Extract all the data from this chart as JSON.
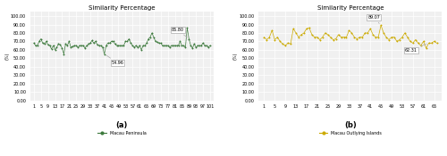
{
  "title_a": "Similarity Percentage",
  "title_b": "Similarity Percentage",
  "ylabel": "(%)",
  "xlabel_a": "(a)",
  "xlabel_b": "(b)",
  "legend_a": "Macau Peninsula",
  "legend_b": "Macau Outlying Islands",
  "color_a": "#3d7a3d",
  "color_b": "#ccaa00",
  "bg_color": "#f0f0f0",
  "grid_color": "#ffffff",
  "ylim": [
    0,
    105
  ],
  "yticks": [
    0,
    10,
    20,
    30,
    40,
    50,
    60,
    70,
    80,
    90,
    100
  ],
  "ytick_labels": [
    "0.00",
    "10.00",
    "20.00",
    "30.00",
    "40.00",
    "50.00",
    "60.00",
    "70.00",
    "80.00",
    "90.00",
    "100.00"
  ],
  "xticks_a": [
    1,
    5,
    9,
    13,
    17,
    21,
    25,
    29,
    33,
    37,
    41,
    45,
    49,
    53,
    57,
    61,
    65,
    69,
    73,
    77,
    81,
    85,
    89,
    93,
    97,
    101
  ],
  "xtick_labels_a": [
    "1",
    "5",
    "9",
    "13",
    "17",
    "21",
    "25",
    "29",
    "33",
    "37",
    "41",
    "45",
    "49",
    "53",
    "57",
    "61",
    "65",
    "69",
    "73",
    "77",
    "81",
    "85",
    "89",
    "93",
    "97",
    "101"
  ],
  "xticks_b": [
    1,
    5,
    9,
    13,
    17,
    21,
    25,
    29,
    33,
    37,
    41,
    45,
    49,
    53,
    57,
    61,
    65
  ],
  "xtick_labels_b": [
    "1",
    "5",
    "9",
    "13",
    "17",
    "21",
    "25",
    "29",
    "33",
    "37",
    "41",
    "45",
    "49",
    "53",
    "57",
    "61",
    "65"
  ],
  "ann_a_max_val": 85.8,
  "ann_a_max_idx": 89,
  "ann_a_min_val": 54.96,
  "ann_a_min_idx": 41,
  "ann_b_max_val": 89.07,
  "ann_b_max_idx": 45,
  "ann_b_min_val": 62.31,
  "ann_b_min_idx": 63,
  "values_a": [
    68,
    65,
    65,
    70,
    73,
    68,
    67,
    70,
    66,
    65,
    61,
    65,
    60,
    63,
    67,
    66,
    62,
    55,
    67,
    65,
    70,
    63,
    64,
    65,
    65,
    63,
    65,
    65,
    65,
    62,
    65,
    67,
    68,
    71,
    68,
    70,
    66,
    65,
    65,
    63,
    55,
    65,
    68,
    68,
    70,
    70,
    67,
    65,
    65,
    65,
    65,
    65,
    70,
    70,
    73,
    68,
    65,
    63,
    65,
    63,
    65,
    60,
    65,
    65,
    68,
    73,
    75,
    80,
    75,
    70,
    69,
    68,
    68,
    65,
    65,
    65,
    65,
    63,
    65,
    65,
    65,
    65,
    65,
    70,
    65,
    65,
    63,
    86,
    73,
    65,
    62,
    67,
    63,
    65,
    65,
    65,
    68,
    65,
    65,
    63,
    65
  ],
  "values_b": [
    75,
    72,
    75,
    83,
    72,
    75,
    70,
    67,
    65,
    68,
    67,
    85,
    80,
    75,
    78,
    80,
    85,
    86,
    78,
    75,
    75,
    72,
    75,
    80,
    78,
    75,
    72,
    73,
    78,
    75,
    75,
    75,
    83,
    80,
    75,
    73,
    75,
    75,
    80,
    80,
    85,
    78,
    75,
    75,
    89,
    80,
    75,
    72,
    75,
    75,
    70,
    72,
    75,
    80,
    75,
    70,
    68,
    72,
    68,
    65,
    70,
    62,
    68,
    68,
    70,
    68
  ]
}
